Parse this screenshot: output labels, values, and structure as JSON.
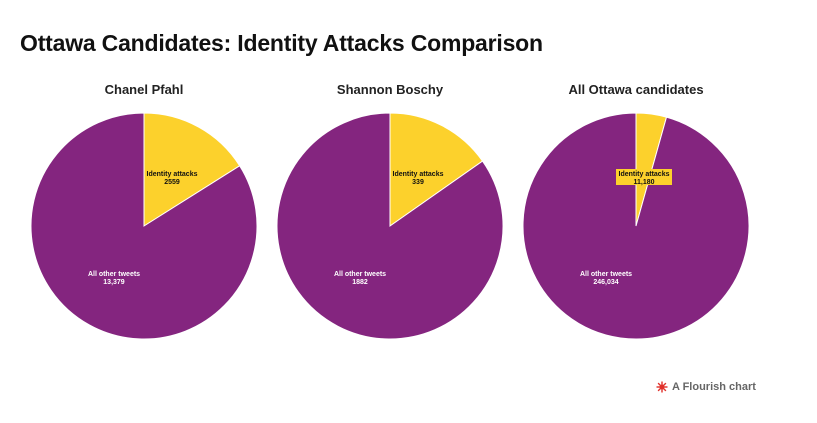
{
  "title": "Ottawa Candidates: Identity Attacks Comparison",
  "footer": {
    "label": "A Flourish chart",
    "icon": "flourish-burst-icon"
  },
  "colors": {
    "identity": "#fcd12c",
    "other": "#84257f",
    "footer_icon": "#e0302a"
  },
  "chart_data": [
    {
      "type": "pie",
      "title": "Chanel Pfahl",
      "slices": [
        {
          "label": "Identity attacks",
          "value": 2559,
          "display": "2559"
        },
        {
          "label": "All other tweets",
          "value": 13379,
          "display": "13,379"
        }
      ]
    },
    {
      "type": "pie",
      "title": "Shannon Boschy",
      "slices": [
        {
          "label": "Identity attacks",
          "value": 339,
          "display": "339"
        },
        {
          "label": "All other tweets",
          "value": 1882,
          "display": "1882"
        }
      ]
    },
    {
      "type": "pie",
      "title": "All Ottawa candidates",
      "slices": [
        {
          "label": "Identity attacks",
          "value": 11180,
          "display": "11,180"
        },
        {
          "label": "All other tweets",
          "value": 246034,
          "display": "246,034"
        }
      ]
    }
  ]
}
